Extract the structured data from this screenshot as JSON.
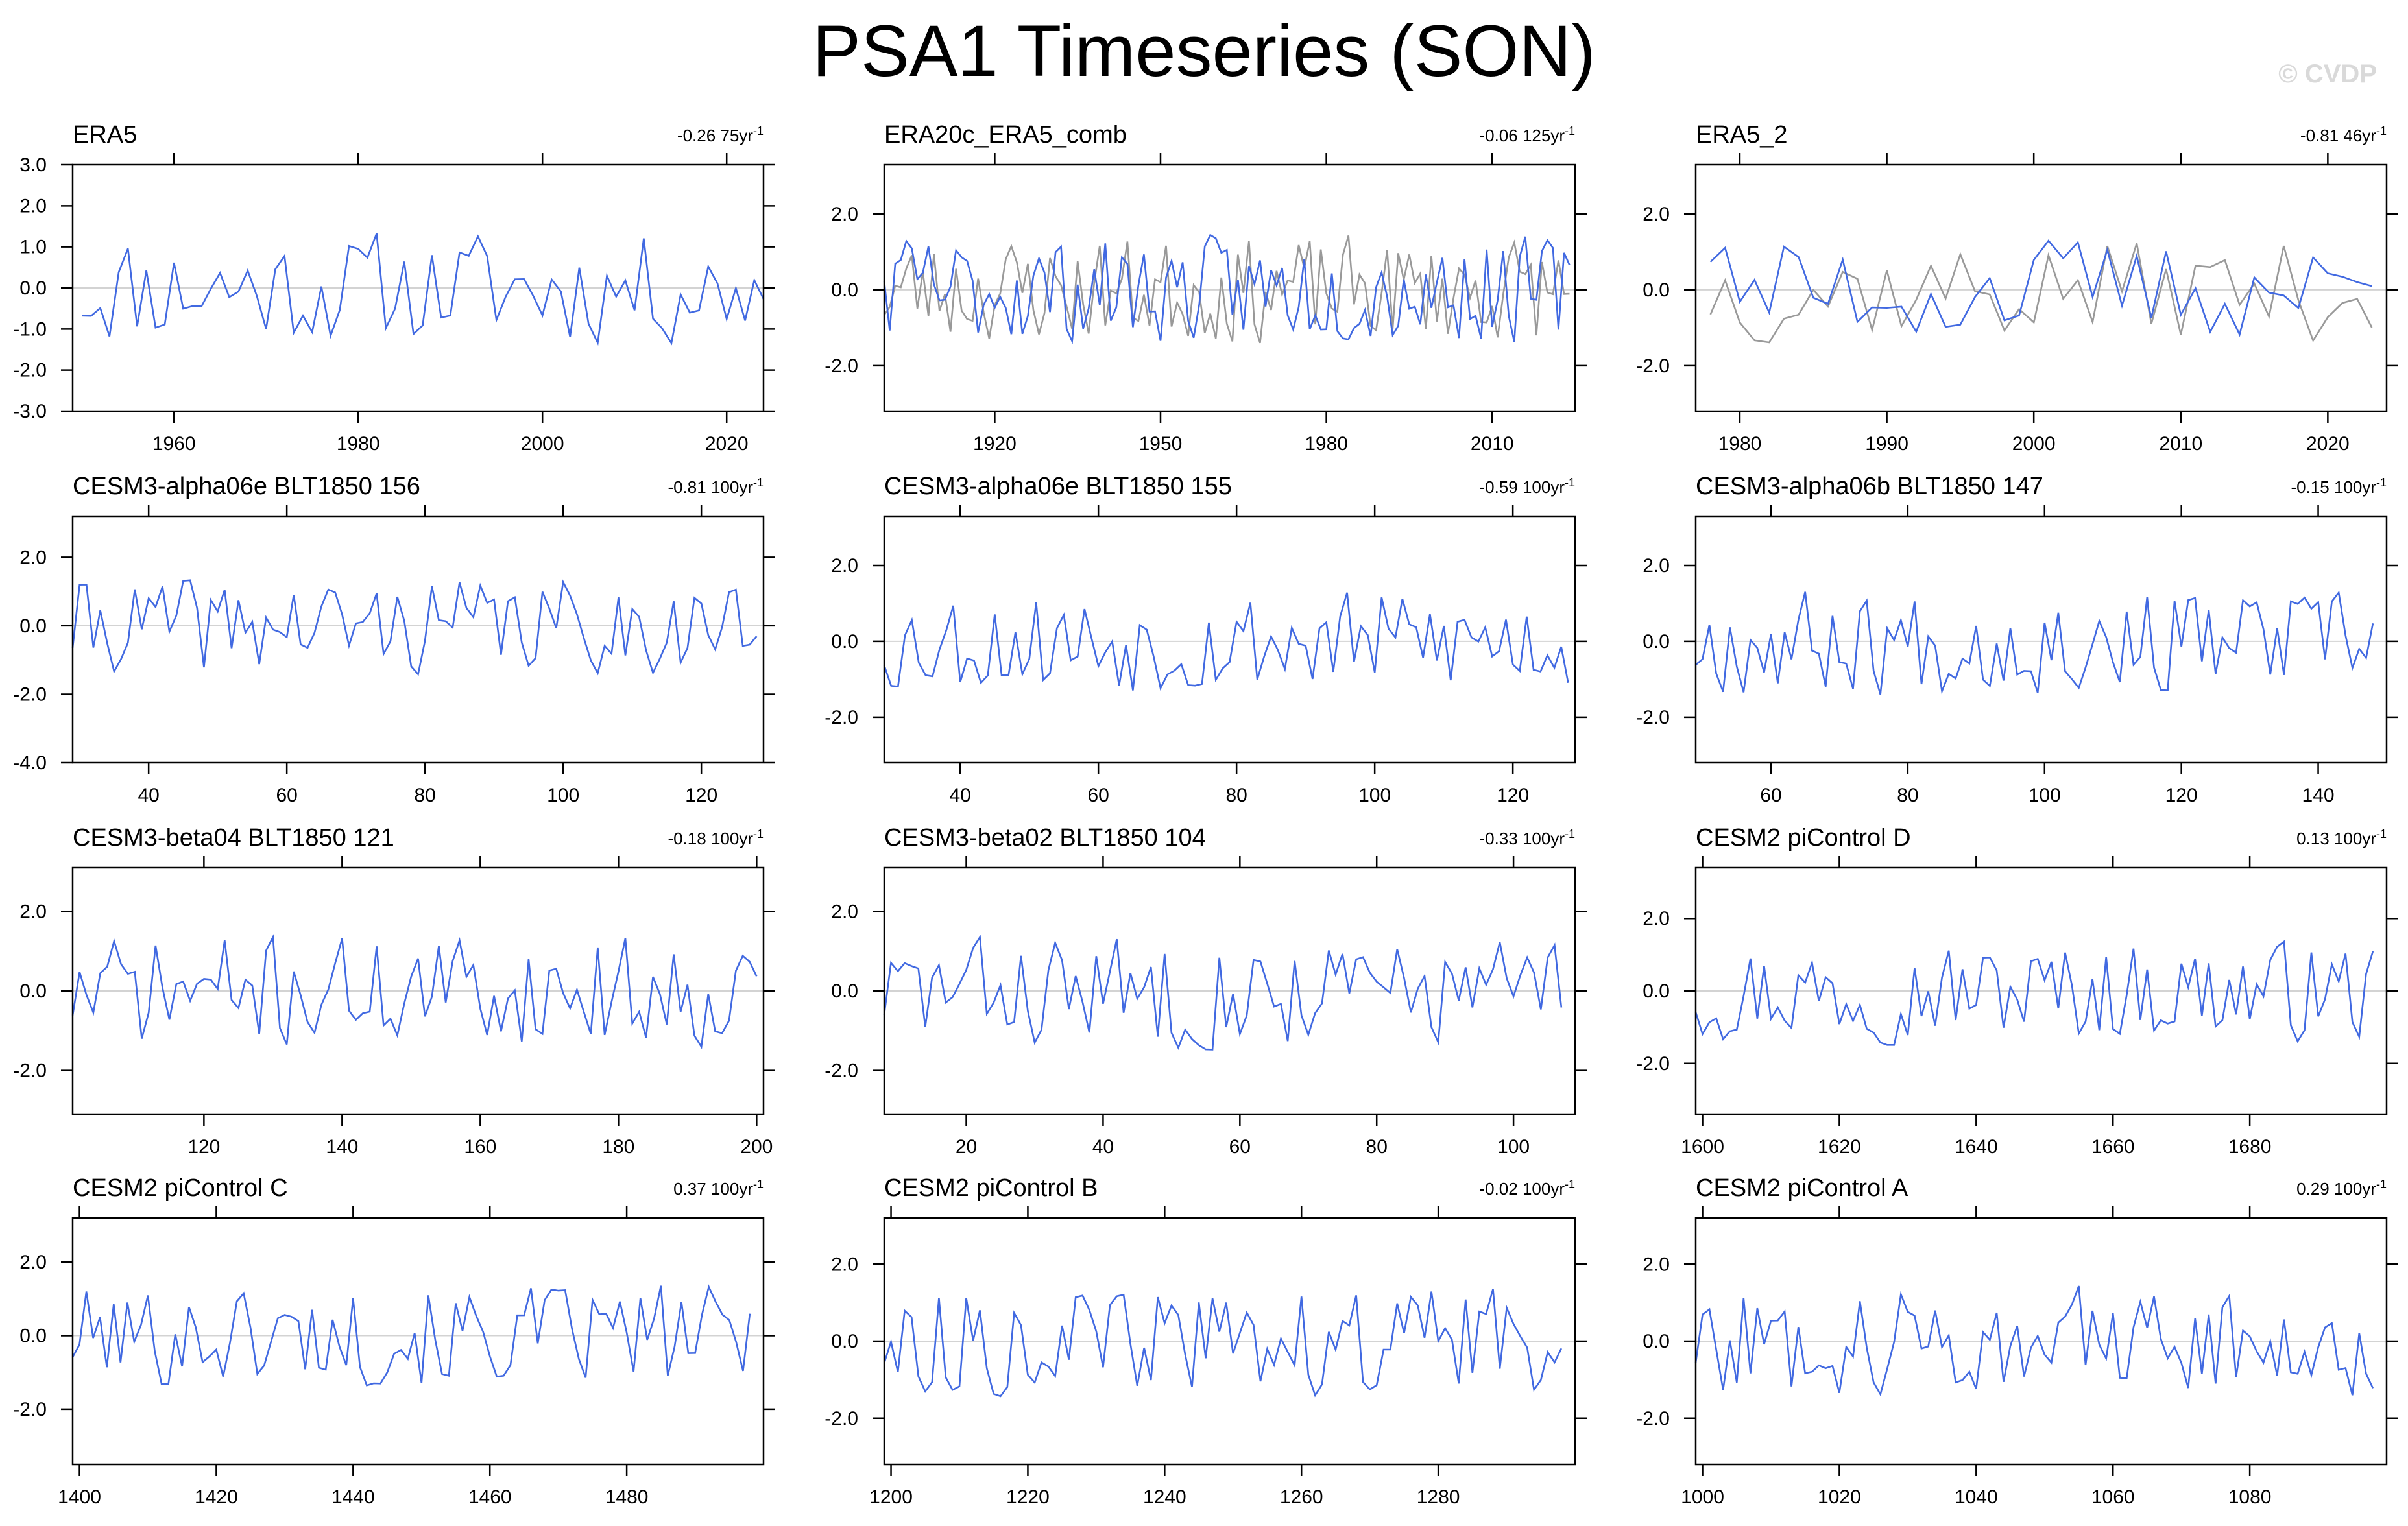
{
  "page": {
    "title": "PSA1 Timeseries (SON)",
    "watermark": "© CVDP"
  },
  "colors": {
    "primary_series": "#4169e1",
    "secondary_series": "#999999",
    "zero_line": "#d3d3d3",
    "frame": "#000000"
  },
  "chart_data": [
    {
      "type": "line",
      "title": "ERA5",
      "trend": "-0.26 75yr",
      "trend_unit_sup": "-1",
      "xlim": [
        1949,
        2024
      ],
      "ylim": [
        -3,
        3
      ],
      "xticks": [
        1960,
        1980,
        2000,
        2020
      ],
      "yticks": [
        -3,
        -2,
        -1,
        0,
        1,
        2,
        3
      ],
      "ytick_labels": [
        "-3.0",
        "-2.0",
        "-1.0",
        "0.0",
        "1.0",
        "2.0",
        "3.0"
      ],
      "seed": 11,
      "start": 1950,
      "count": 75,
      "series_count": 1
    },
    {
      "type": "line",
      "title": "ERA20c_ERA5_comb",
      "trend": "-0.06 125yr",
      "trend_unit_sup": "-1",
      "xlim": [
        1900,
        2025
      ],
      "ylim": [
        -3.2,
        3.3
      ],
      "xticks": [
        1920,
        1950,
        1980,
        2010
      ],
      "yticks": [
        -2,
        0,
        2
      ],
      "ytick_labels": [
        "-2.0",
        "0.0",
        "2.0"
      ],
      "seed": 23,
      "start": 1900,
      "count": 125,
      "series_count": 2
    },
    {
      "type": "line",
      "title": "ERA5_2",
      "trend": "-0.81 46yr",
      "trend_unit_sup": "-1",
      "xlim": [
        1977,
        2024
      ],
      "ylim": [
        -3.2,
        3.3
      ],
      "xticks": [
        1980,
        1990,
        2000,
        2010,
        2020
      ],
      "yticks": [
        -2,
        0,
        2
      ],
      "ytick_labels": [
        "-2.0",
        "0.0",
        "2.0"
      ],
      "seed": 37,
      "start": 1978,
      "count": 46,
      "series_count": 2
    },
    {
      "type": "line",
      "title": "CESM3-alpha06e BLT1850 156",
      "trend": "-0.81 100yr",
      "trend_unit_sup": "-1",
      "xlim": [
        29,
        129
      ],
      "ylim": [
        -4,
        3.2
      ],
      "xticks": [
        40,
        60,
        80,
        100,
        120
      ],
      "yticks": [
        -4,
        -2,
        0,
        2
      ],
      "ytick_labels": [
        "-4.0",
        "-2.0",
        "0.0",
        "2.0"
      ],
      "seed": 41,
      "start": 29,
      "count": 100,
      "series_count": 1
    },
    {
      "type": "line",
      "title": "CESM3-alpha06e BLT1850 155",
      "trend": "-0.59 100yr",
      "trend_unit_sup": "-1",
      "xlim": [
        29,
        129
      ],
      "ylim": [
        -3.2,
        3.3
      ],
      "xticks": [
        40,
        60,
        80,
        100,
        120
      ],
      "yticks": [
        -2,
        0,
        2
      ],
      "ytick_labels": [
        "-2.0",
        "0.0",
        "2.0"
      ],
      "seed": 53,
      "start": 29,
      "count": 100,
      "series_count": 1
    },
    {
      "type": "line",
      "title": "CESM3-alpha06b BLT1850 147",
      "trend": "-0.15 100yr",
      "trend_unit_sup": "-1",
      "xlim": [
        49,
        150
      ],
      "ylim": [
        -3.2,
        3.3
      ],
      "xticks": [
        60,
        80,
        100,
        120,
        140
      ],
      "yticks": [
        -2,
        0,
        2
      ],
      "ytick_labels": [
        "-2.0",
        "0.0",
        "2.0"
      ],
      "seed": 67,
      "start": 49,
      "count": 100,
      "series_count": 1
    },
    {
      "type": "line",
      "title": "CESM3-beta04 BLT1850 121",
      "trend": "-0.18 100yr",
      "trend_unit_sup": "-1",
      "xlim": [
        101,
        201
      ],
      "ylim": [
        -3.1,
        3.1
      ],
      "xticks": [
        120,
        140,
        160,
        180,
        200
      ],
      "yticks": [
        -2,
        0,
        2
      ],
      "ytick_labels": [
        "-2.0",
        "0.0",
        "2.0"
      ],
      "seed": 71,
      "start": 101,
      "count": 100,
      "series_count": 1
    },
    {
      "type": "line",
      "title": "CESM3-beta02 BLT1850 104",
      "trend": "-0.33 100yr",
      "trend_unit_sup": "-1",
      "xlim": [
        8,
        109
      ],
      "ylim": [
        -3.1,
        3.1
      ],
      "xticks": [
        20,
        40,
        60,
        80,
        100
      ],
      "yticks": [
        -2,
        0,
        2
      ],
      "ytick_labels": [
        "-2.0",
        "0.0",
        "2.0"
      ],
      "seed": 83,
      "start": 8,
      "count": 100,
      "series_count": 1
    },
    {
      "type": "line",
      "title": "CESM2 piControl D",
      "trend": "0.13 100yr",
      "trend_unit_sup": "-1",
      "xlim": [
        1599,
        1700
      ],
      "ylim": [
        -3.4,
        3.4
      ],
      "xticks": [
        1600,
        1620,
        1640,
        1660,
        1680
      ],
      "yticks": [
        -2,
        0,
        2
      ],
      "ytick_labels": [
        "-2.0",
        "0.0",
        "2.0"
      ],
      "seed": 97,
      "start": 1599,
      "count": 100,
      "series_count": 1
    },
    {
      "type": "line",
      "title": "CESM2 piControl C",
      "trend": "0.37 100yr",
      "trend_unit_sup": "-1",
      "xlim": [
        1399,
        1500
      ],
      "ylim": [
        -3.5,
        3.2
      ],
      "xticks": [
        1400,
        1420,
        1440,
        1460,
        1480
      ],
      "yticks": [
        -2,
        0,
        2
      ],
      "ytick_labels": [
        "-2.0",
        "0.0",
        "2.0"
      ],
      "seed": 101,
      "start": 1399,
      "count": 100,
      "series_count": 1
    },
    {
      "type": "line",
      "title": "CESM2 piControl B",
      "trend": "-0.02 100yr",
      "trend_unit_sup": "-1",
      "xlim": [
        1199,
        1300
      ],
      "ylim": [
        -3.2,
        3.2
      ],
      "xticks": [
        1200,
        1220,
        1240,
        1260,
        1280
      ],
      "yticks": [
        -2,
        0,
        2
      ],
      "ytick_labels": [
        "-2.0",
        "0.0",
        "2.0"
      ],
      "seed": 113,
      "start": 1199,
      "count": 100,
      "series_count": 1
    },
    {
      "type": "line",
      "title": "CESM2 piControl A",
      "trend": "0.29 100yr",
      "trend_unit_sup": "-1",
      "xlim": [
        999,
        1100
      ],
      "ylim": [
        -3.2,
        3.2
      ],
      "xticks": [
        1000,
        1020,
        1040,
        1060,
        1080
      ],
      "yticks": [
        -2,
        0,
        2
      ],
      "ytick_labels": [
        "-2.0",
        "0.0",
        "2.0"
      ],
      "seed": 127,
      "start": 999,
      "count": 100,
      "series_count": 1
    }
  ]
}
